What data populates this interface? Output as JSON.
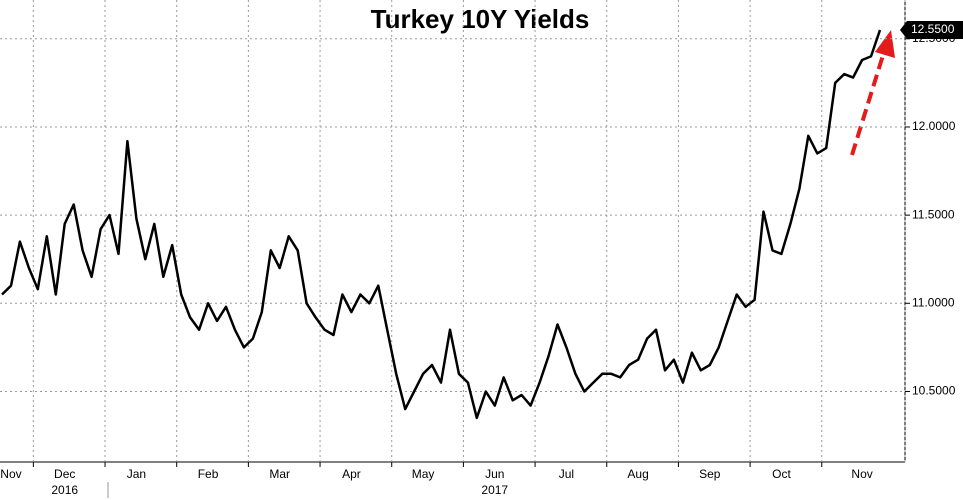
{
  "chart_data": {
    "type": "line",
    "title": "Turkey 10Y Yields",
    "categories": [
      null,
      "Nov",
      null,
      null,
      null,
      null,
      null,
      "Dec",
      null,
      null,
      null,
      null,
      null,
      null,
      null,
      "Jan",
      null,
      null,
      null,
      null,
      null,
      null,
      null,
      "Feb",
      null,
      null,
      null,
      null,
      null,
      null,
      null,
      "Mar",
      null,
      null,
      null,
      null,
      null,
      null,
      null,
      "Apr",
      null,
      null,
      null,
      null,
      null,
      null,
      null,
      "May",
      null,
      null,
      null,
      null,
      null,
      null,
      null,
      "Jun",
      null,
      null,
      null,
      null,
      null,
      null,
      null,
      "Jul",
      null,
      null,
      null,
      null,
      null,
      null,
      null,
      "Aug",
      null,
      null,
      null,
      null,
      null,
      null,
      null,
      "Sep",
      null,
      null,
      null,
      null,
      null,
      null,
      null,
      "Oct",
      null,
      null,
      null,
      null,
      null,
      null,
      null,
      null,
      "Nov",
      null,
      null
    ],
    "years": [
      null,
      null,
      null,
      null,
      null,
      null,
      null,
      "2016",
      null,
      null,
      null,
      null,
      null,
      null,
      null,
      null,
      null,
      null,
      null,
      null,
      null,
      null,
      null,
      null,
      null,
      null,
      null,
      null,
      null,
      null,
      null,
      null,
      null,
      null,
      null,
      null,
      null,
      null,
      null,
      null,
      null,
      null,
      null,
      null,
      null,
      null,
      null,
      null,
      null,
      null,
      null,
      null,
      null,
      null,
      null,
      "2017",
      null,
      null,
      null,
      null,
      null,
      null,
      null,
      null,
      null,
      null,
      null,
      null,
      null,
      null,
      null,
      null,
      null,
      null,
      null,
      null,
      null,
      null,
      null,
      null,
      null,
      null,
      null,
      null,
      null,
      null,
      null,
      null,
      null,
      null,
      null,
      null,
      null,
      null,
      null,
      null,
      null,
      null,
      null
    ],
    "series": [
      {
        "color": "#000000",
        "values": [
          11.05,
          11.1,
          11.35,
          11.2,
          11.08,
          11.38,
          11.05,
          11.45,
          11.56,
          11.3,
          11.15,
          11.42,
          11.5,
          11.28,
          11.92,
          11.48,
          11.25,
          11.45,
          11.15,
          11.33,
          11.05,
          10.92,
          10.85,
          11.0,
          10.9,
          10.98,
          10.85,
          10.75,
          10.8,
          10.95,
          11.3,
          11.2,
          11.38,
          11.3,
          11.0,
          10.92,
          10.85,
          10.82,
          11.05,
          10.95,
          11.05,
          11.0,
          11.1,
          10.85,
          10.6,
          10.4,
          10.5,
          10.6,
          10.65,
          10.55,
          10.85,
          10.6,
          10.55,
          10.35,
          10.5,
          10.42,
          10.58,
          10.45,
          10.48,
          10.42,
          10.55,
          10.7,
          10.88,
          10.75,
          10.6,
          10.5,
          10.55,
          10.6,
          10.6,
          10.58,
          10.65,
          10.68,
          10.8,
          10.85,
          10.62,
          10.68,
          10.55,
          10.72,
          10.62,
          10.65,
          10.75,
          10.9,
          11.05,
          10.98,
          11.02,
          11.52,
          11.3,
          11.28,
          11.45,
          11.65,
          11.95,
          11.85,
          11.88,
          12.25,
          12.3,
          12.28,
          12.38,
          12.4,
          12.55
        ],
        "value_labels": [
          null,
          null,
          null,
          null,
          null,
          null,
          null,
          null,
          null,
          null,
          null,
          null,
          null,
          null,
          null,
          null,
          null,
          null,
          null,
          null,
          null,
          null,
          null,
          null,
          null,
          null,
          null,
          null,
          null,
          null,
          null,
          null,
          null,
          null,
          null,
          null,
          null,
          null,
          null,
          null,
          null,
          null,
          null,
          null,
          null,
          null,
          null,
          null,
          null,
          null,
          null,
          null,
          null,
          null,
          null,
          null,
          null,
          null,
          null,
          null,
          null,
          null,
          null,
          null,
          null,
          null,
          null,
          null,
          null,
          null,
          null,
          null,
          null,
          null,
          null,
          null,
          null,
          null,
          null,
          null,
          null,
          null,
          null,
          null,
          null,
          null,
          null,
          null,
          null,
          null,
          null,
          null,
          null,
          null,
          null,
          null,
          null,
          null,
          "12.5500"
        ]
      }
    ],
    "ylim": [
      10.1,
      12.72
    ],
    "yticks": [
      {
        "value": 10.5,
        "label": "10.5000"
      },
      {
        "value": 11,
        "label": "11.0000"
      },
      {
        "value": 11.5,
        "label": "11.5000"
      },
      {
        "value": 12,
        "label": "12.0000"
      },
      {
        "value": 12.5,
        "label": "12.5000"
      }
    ],
    "grid": true
  }
}
